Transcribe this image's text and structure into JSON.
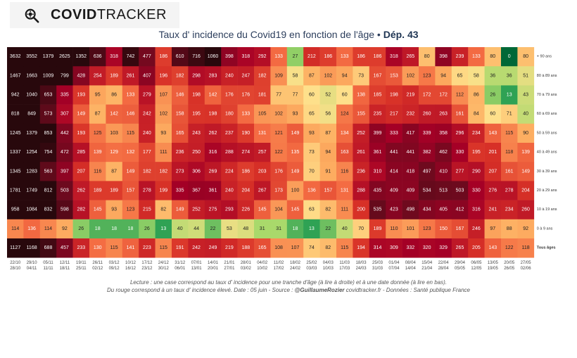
{
  "logo": {
    "bold": "COVID",
    "thin": "TRACKER",
    "icon": "virus-magnifier-icon"
  },
  "title": {
    "main": "Taux d' incidence du Covid19 en fonction de l'âge",
    "sep": " • ",
    "dep": "Dép. 43"
  },
  "footer": {
    "line1": "Lecture : une case correspond au taux d' incidence pour une tranche d'âge (à lire à droite) et à une date donnée (à lire en bas).",
    "line2_prefix": "Du rouge correspond à un taux d' incidence élevé.  Date : 05 juin - Source : ",
    "line2_author": "@GuillaumeRozier",
    "line2_suffix": " covidtracker.fr - Données : Santé publique France"
  },
  "chart_data": {
    "type": "heatmap",
    "title": "Taux d' incidence du Covid19 en fonction de l'âge • Dép. 43",
    "x_top": [
      "22/10",
      "29/10",
      "05/11",
      "12/11",
      "19/11",
      "26/11",
      "03/12",
      "10/12",
      "17/12",
      "24/12",
      "31/12",
      "07/01",
      "14/01",
      "21/01",
      "28/01",
      "04/02",
      "11/02",
      "18/02",
      "25/02",
      "04/03",
      "11/03",
      "18/03",
      "25/03",
      "01/04",
      "08/04",
      "15/04",
      "22/04",
      "29/04",
      "06/05",
      "13/05",
      "20/05",
      "27/05"
    ],
    "x_bottom": [
      "28/10",
      "04/11",
      "11/11",
      "18/11",
      "25/11",
      "02/12",
      "09/12",
      "16/12",
      "23/12",
      "30/12",
      "06/01",
      "13/01",
      "20/01",
      "27/01",
      "03/02",
      "10/02",
      "17/02",
      "24/02",
      "03/03",
      "10/03",
      "17/03",
      "24/03",
      "31/03",
      "07/04",
      "14/04",
      "21/04",
      "28/04",
      "05/05",
      "12/05",
      "19/05",
      "26/05",
      "02/06"
    ],
    "rows": [
      {
        "label": "+ 90 ans",
        "values": [
          3632,
          3552,
          1379,
          2625,
          1352,
          636,
          318,
          742,
          477,
          186,
          610,
          716,
          1060,
          398,
          318,
          292,
          133,
          27,
          212,
          186,
          133,
          186,
          186,
          318,
          265,
          80,
          398,
          239,
          133,
          80,
          0,
          80
        ]
      },
      {
        "label": "80 à 89 ans",
        "values": [
          1467,
          1663,
          1009,
          799,
          428,
          254,
          189,
          261,
          407,
          196,
          182,
          298,
          283,
          240,
          247,
          182,
          109,
          58,
          87,
          102,
          94,
          73,
          167,
          153,
          102,
          123,
          94,
          65,
          58,
          36,
          36,
          51
        ]
      },
      {
        "label": "70 à 79 ans",
        "values": [
          942,
          1040,
          653,
          335,
          193,
          95,
          86,
          133,
          279,
          107,
          146,
          198,
          142,
          176,
          176,
          181,
          77,
          77,
          60,
          52,
          60,
          138,
          185,
          198,
          219,
          172,
          172,
          112,
          86,
          26,
          13,
          43
        ]
      },
      {
        "label": "60 à 69 ans",
        "values": [
          818,
          849,
          573,
          307,
          149,
          87,
          142,
          146,
          242,
          102,
          158,
          195,
          198,
          180,
          133,
          105,
          102,
          93,
          65,
          56,
          124,
          155,
          235,
          217,
          232,
          260,
          263,
          161,
          84,
          60,
          71,
          40
        ]
      },
      {
        "label": "50 à 59 ans",
        "values": [
          1245,
          1379,
          853,
          442,
          193,
          125,
          103,
          115,
          240,
          93,
          165,
          243,
          262,
          237,
          190,
          131,
          121,
          149,
          93,
          87,
          134,
          252,
          399,
          333,
          417,
          339,
          358,
          296,
          234,
          143,
          115,
          90
        ]
      },
      {
        "label": "40 à 49 ans",
        "values": [
          1337,
          1254,
          754,
          472,
          285,
          139,
          129,
          132,
          177,
          111,
          236,
          250,
          316,
          288,
          274,
          257,
          122,
          135,
          73,
          94,
          163,
          261,
          361,
          441,
          441,
          382,
          462,
          330,
          195,
          201,
          118,
          139
        ]
      },
      {
        "label": "30 à 39 ans",
        "values": [
          1345,
          1283,
          563,
          397,
          207,
          116,
          87,
          149,
          182,
          182,
          273,
          306,
          269,
          224,
          186,
          203,
          176,
          149,
          70,
          91,
          116,
          236,
          310,
          414,
          418,
          497,
          410,
          277,
          290,
          207,
          161,
          149
        ]
      },
      {
        "label": "20 à 29 ans",
        "values": [
          1781,
          1749,
          812,
          503,
          262,
          189,
          189,
          157,
          278,
          199,
          335,
          367,
          361,
          240,
          204,
          267,
          173,
          100,
          136,
          157,
          131,
          288,
          435,
          409,
          409,
          534,
          513,
          503,
          330,
          276,
          278,
          204
        ]
      },
      {
        "label": "10 à 19 ans",
        "values": [
          958,
          1084,
          832,
          598,
          282,
          145,
          93,
          123,
          215,
          82,
          149,
          252,
          275,
          293,
          226,
          145,
          104,
          145,
          63,
          82,
          111,
          200,
          535,
          423,
          498,
          434,
          405,
          412,
          316,
          241,
          234,
          260
        ]
      },
      {
        "label": "0 à 9 ans",
        "values": [
          114,
          136,
          114,
          92,
          26,
          18,
          18,
          18,
          26,
          13,
          40,
          44,
          22,
          53,
          48,
          31,
          31,
          18,
          13,
          22,
          40,
          70,
          189,
          110,
          101,
          123,
          150,
          167,
          246,
          97,
          88,
          92
        ]
      },
      {
        "label": "Tous âges",
        "values": [
          1127,
          1168,
          688,
          457,
          233,
          130,
          115,
          141,
          223,
          115,
          191,
          242,
          249,
          219,
          188,
          165,
          108,
          107,
          74,
          82,
          115,
          194,
          314,
          309,
          332,
          320,
          329,
          265,
          205,
          143,
          122,
          118
        ]
      }
    ]
  }
}
